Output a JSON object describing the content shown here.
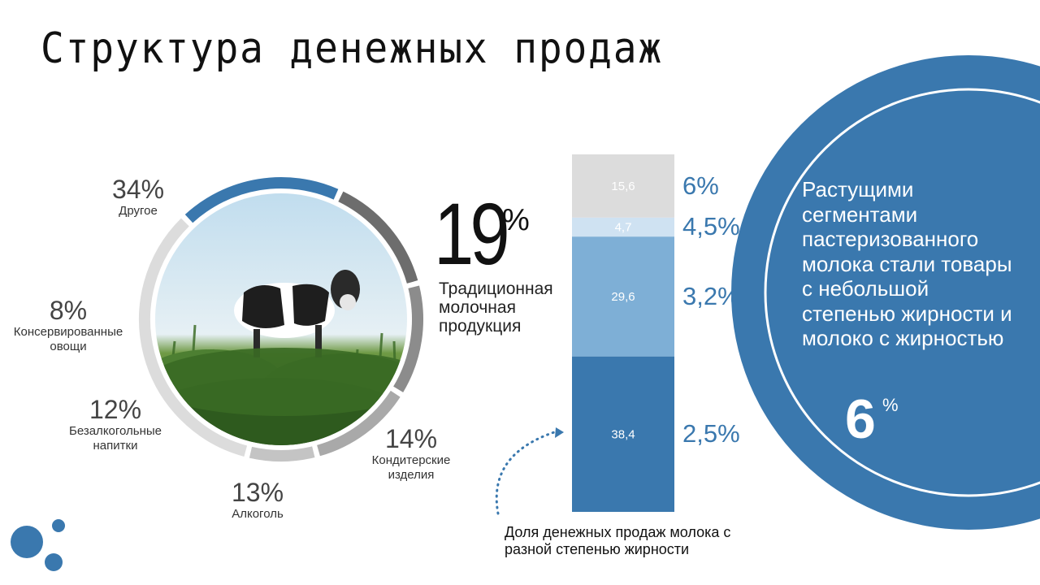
{
  "title": "Структура денежных продаж",
  "colors": {
    "blue": "#3a78ae",
    "mid_blue": "#7eafd6",
    "light_blue": "#cfe2f2",
    "light_gray": "#dcdcdc",
    "gray": "#a9a9a9",
    "dark_gray": "#6d6d6d",
    "mid_gray": "#8c8c8c"
  },
  "chart_data": [
    {
      "type": "pie",
      "style": "donut",
      "center_image": "cow-in-field-photo",
      "segments": [
        {
          "pct": "34%",
          "value": 34,
          "name": "Другое",
          "color": "#dcdcdc"
        },
        {
          "pct": "19%",
          "value": 19,
          "name": "Традиционная молочная продукция",
          "color": "#3a78ae"
        },
        {
          "pct": "14%",
          "value": 14,
          "name": "Кондитерские изделия",
          "color": "#6d6d6d"
        },
        {
          "pct": "13%",
          "value": 13,
          "name": "Алкоголь",
          "color": "#8c8c8c"
        },
        {
          "pct": "12%",
          "value": 12,
          "name": "Безалкогольные напитки",
          "color": "#a9a9a9"
        },
        {
          "pct": "8%",
          "value": 8,
          "name": "Консервированные овощи",
          "color": "#c4c4c4"
        }
      ],
      "highlight": {
        "value": "19",
        "unit": "%",
        "name": "Традиционная молочная продукция"
      }
    },
    {
      "type": "bar",
      "style": "stacked-single",
      "caption": "Доля денежных продаж молока с разной степенью жирности",
      "segments": [
        {
          "label": "38,4",
          "value": 38.4,
          "fat": "2,5%",
          "color": "#3a78ae"
        },
        {
          "label": "29,6",
          "value": 29.6,
          "fat": "3,2%",
          "color": "#7eafd6"
        },
        {
          "label": "4,7",
          "value": 4.7,
          "fat": "4,5%",
          "color": "#cfe2f2"
        },
        {
          "label": "15,6",
          "value": 15.6,
          "fat": "6%",
          "color": "#dcdcdc"
        }
      ]
    }
  ],
  "circle_text": "Растущими сегментами пастеризованного молока стали товары с небольшой степенью жирности и молоко с жирностью",
  "circle_value": "6",
  "circle_unit": "%"
}
